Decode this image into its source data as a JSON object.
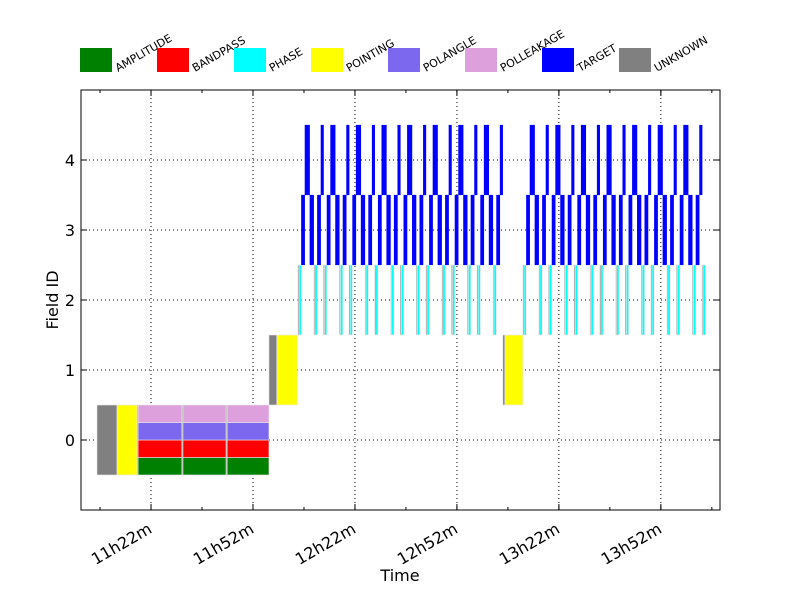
{
  "chart_data": {
    "type": "bar",
    "title": "",
    "xlabel": "Time",
    "ylabel": "Field ID",
    "time_unit": "minutes since 11h00m",
    "xlim": [
      1.4,
      189.4
    ],
    "ylim": [
      -1,
      5
    ],
    "grid": true,
    "legend_placement": "top",
    "x_ticks": [
      {
        "value": 22,
        "label": "11h22m"
      },
      {
        "value": 52,
        "label": "11h52m"
      },
      {
        "value": 82,
        "label": "12h22m"
      },
      {
        "value": 112,
        "label": "12h52m"
      },
      {
        "value": 142,
        "label": "13h22m"
      },
      {
        "value": 172,
        "label": "13h52m"
      }
    ],
    "x_minor_step": 15,
    "y_ticks": [
      {
        "value": 0,
        "label": "0"
      },
      {
        "value": 1,
        "label": "1"
      },
      {
        "value": 2,
        "label": "2"
      },
      {
        "value": 3,
        "label": "3"
      },
      {
        "value": 4,
        "label": "4"
      }
    ],
    "legend": [
      {
        "key": "AMPLITUDE",
        "label": "AMPLITUDE",
        "color": "#008000"
      },
      {
        "key": "BANDPASS",
        "label": "BANDPASS",
        "color": "#ff0000"
      },
      {
        "key": "PHASE",
        "label": "PHASE",
        "color": "#00ffff"
      },
      {
        "key": "POINTING",
        "label": "POINTING",
        "color": "#ffff00"
      },
      {
        "key": "POLANGLE",
        "label": "POLANGLE",
        "color": "#7b68ee"
      },
      {
        "key": "POLLEAKAGE",
        "label": "POLLEAKAGE",
        "color": "#dda0dd"
      },
      {
        "key": "TARGET",
        "label": "TARGET",
        "color": "#0000ff"
      },
      {
        "key": "UNKNOWN",
        "label": "UNKNOWN",
        "color": "#808080"
      }
    ],
    "scans": [
      {
        "start": 6.1,
        "end": 12.0,
        "field": 0,
        "intents": [
          "UNKNOWN"
        ]
      },
      {
        "start": 12.0,
        "end": 17.9,
        "field": 0,
        "intents": [
          "POINTING"
        ]
      },
      {
        "start": 17.9,
        "end": 18.2,
        "field": 0,
        "intents": [
          "UNKNOWN"
        ]
      },
      {
        "start": 18.2,
        "end": 31.1,
        "field": 0,
        "intents": [
          "AMPLITUDE",
          "BANDPASS",
          "POLANGLE",
          "POLLEAKAGE"
        ]
      },
      {
        "start": 31.1,
        "end": 31.4,
        "field": 0,
        "intents": [
          "UNKNOWN"
        ]
      },
      {
        "start": 31.4,
        "end": 44.1,
        "field": 0,
        "intents": [
          "AMPLITUDE",
          "BANDPASS",
          "POLANGLE",
          "POLLEAKAGE"
        ]
      },
      {
        "start": 44.1,
        "end": 44.4,
        "field": 0,
        "intents": [
          "UNKNOWN"
        ]
      },
      {
        "start": 44.4,
        "end": 56.7,
        "field": 0,
        "intents": [
          "AMPLITUDE",
          "BANDPASS",
          "POLANGLE",
          "POLLEAKAGE"
        ]
      },
      {
        "start": 56.7,
        "end": 59.0,
        "field": 1,
        "intents": [
          "UNKNOWN"
        ]
      },
      {
        "start": 59.0,
        "end": 65.0,
        "field": 1,
        "intents": [
          "POINTING"
        ]
      },
      {
        "start": 125.5,
        "end": 126.1,
        "field": 1,
        "intents": [
          "UNKNOWN"
        ]
      },
      {
        "start": 126.1,
        "end": 131.4,
        "field": 1,
        "intents": [
          "POINTING"
        ]
      }
    ],
    "science_cycles": {
      "cycle_length": 7.53,
      "block_starts": [
        65.2,
        131.4
      ],
      "block_cycle_counts": [
        8,
        7
      ],
      "template": [
        {
          "offset": 0.0,
          "duration": 0.35,
          "field": 2,
          "intent": "UNKNOWN"
        },
        {
          "offset": 0.35,
          "duration": 0.65,
          "field": 2,
          "intent": "PHASE"
        },
        {
          "offset": 1.0,
          "duration": 1.05,
          "field": 3,
          "intent": "TARGET"
        },
        {
          "offset": 2.05,
          "duration": 1.45,
          "field": 4,
          "intent": "TARGET"
        },
        {
          "offset": 3.5,
          "duration": 1.2,
          "field": 3,
          "intent": "TARGET"
        },
        {
          "offset": 4.7,
          "duration": 0.3,
          "field": 2,
          "intent": "UNKNOWN"
        },
        {
          "offset": 5.0,
          "duration": 0.7,
          "field": 2,
          "intent": "PHASE"
        },
        {
          "offset": 5.7,
          "duration": 1.05,
          "field": 3,
          "intent": "TARGET"
        },
        {
          "offset": 6.75,
          "duration": 0.78,
          "field": 4,
          "intent": "TARGET"
        }
      ],
      "final_phase_cal": [
        {
          "start": 184.1,
          "end": 184.4,
          "field": 2,
          "intent": "UNKNOWN"
        },
        {
          "start": 184.4,
          "end": 185.1,
          "field": 2,
          "intent": "PHASE"
        }
      ]
    }
  }
}
